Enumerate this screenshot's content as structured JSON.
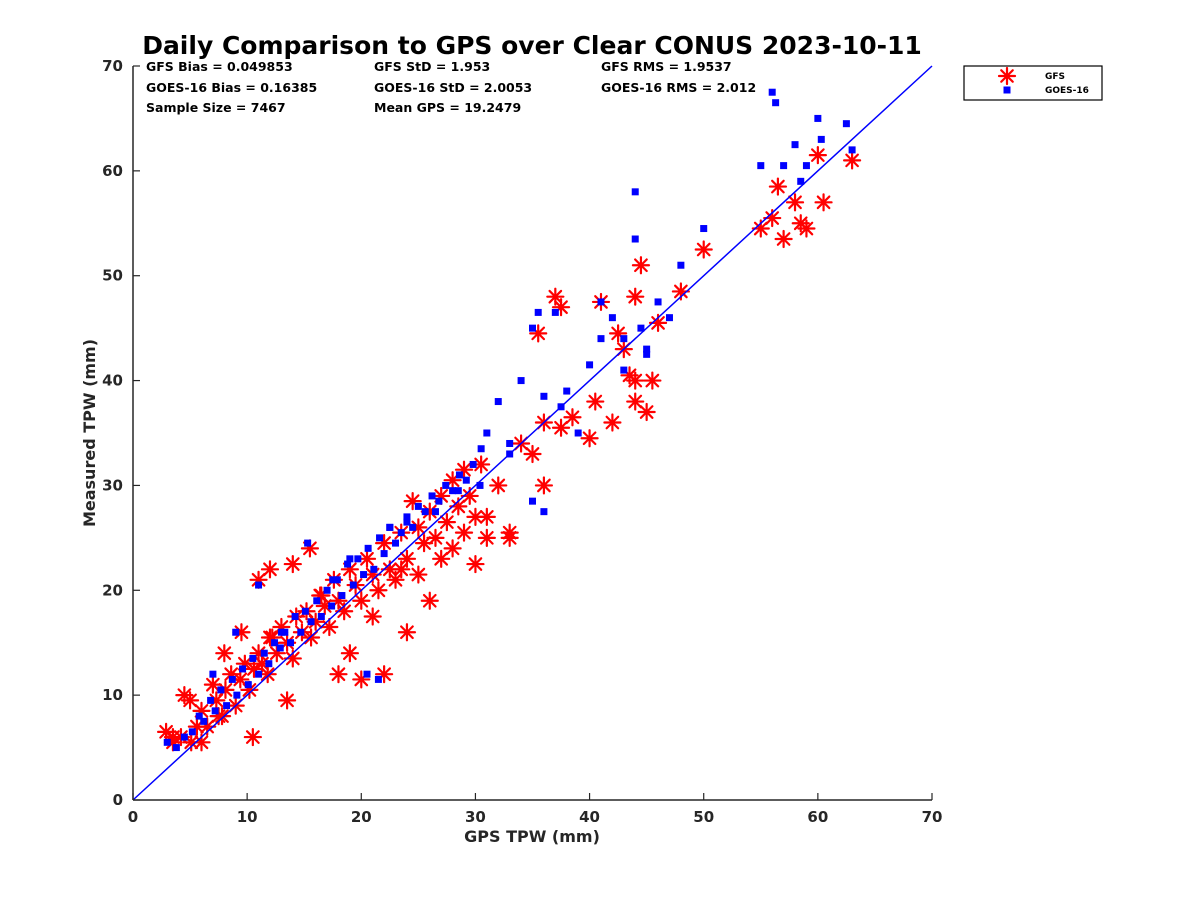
{
  "chart_data": {
    "type": "scatter",
    "title": "Daily Comparison to GPS over Clear CONUS 2023-10-11",
    "xlabel": "GPS TPW (mm)",
    "ylabel": "Measured TPW (mm)",
    "xlim": [
      0,
      70
    ],
    "ylim": [
      0,
      70
    ],
    "xticks": [
      0,
      10,
      20,
      30,
      40,
      50,
      60,
      70
    ],
    "yticks": [
      0,
      10,
      20,
      30,
      40,
      50,
      60,
      70
    ],
    "grid": false,
    "legend_position": "top-right outside",
    "reference_line": {
      "name": "1:1 line",
      "from": [
        0,
        0
      ],
      "to": [
        70,
        70
      ],
      "color": "#0000ff"
    },
    "stats": [
      [
        {
          "label": "GFS Bias",
          "value": "0.049853"
        },
        {
          "label": "GFS StD",
          "value": "1.953"
        },
        {
          "label": "GFS RMS",
          "value": "1.9537"
        }
      ],
      [
        {
          "label": "GOES-16 Bias",
          "value": "0.16385"
        },
        {
          "label": "GOES-16 StD",
          "value": "2.0053"
        },
        {
          "label": "GOES-16 RMS",
          "value": "2.012"
        }
      ],
      [
        {
          "label": "Sample Size",
          "value": "7467"
        },
        {
          "label": "Mean GPS",
          "value": "19.2479"
        }
      ]
    ],
    "series": [
      {
        "name": "GFS",
        "marker": "asterisk",
        "color": "#ff0000",
        "x": [
          2.9,
          3.5,
          4.2,
          5.0,
          5.1,
          5.6,
          6.0,
          6.5,
          7.0,
          7.3,
          7.8,
          8.1,
          8.6,
          9.0,
          9.4,
          9.8,
          10.2,
          10.6,
          11.0,
          11.3,
          11.8,
          12.2,
          12.6,
          13.0,
          13.5,
          14.0,
          14.3,
          14.8,
          15.2,
          15.6,
          16.0,
          16.4,
          16.8,
          17.2,
          17.6,
          18.0,
          18.5,
          19.0,
          19.5,
          20.0,
          20.5,
          21.0,
          21.5,
          22.0,
          22.5,
          23.0,
          23.5,
          24.0,
          24.5,
          25.0,
          25.5,
          26.0,
          26.5,
          27.0,
          27.5,
          28.0,
          28.5,
          29.0,
          29.5,
          30.0,
          30.5,
          31.0,
          32.0,
          33.0,
          34.0,
          35.0,
          35.5,
          36.0,
          37.0,
          37.5,
          38.5,
          40.0,
          40.5,
          41.0,
          42.0,
          42.5,
          43.0,
          43.5,
          44.0,
          44.5,
          45.0,
          45.5,
          46.0,
          48.0,
          50.0,
          55.0,
          56.0,
          56.5,
          57.0,
          58.0,
          58.5,
          59.0,
          60.0,
          60.5,
          63.0,
          11.0,
          12.0,
          14.0,
          15.5,
          8.0,
          7.5,
          9.5,
          10.5,
          13.5,
          18.0,
          20.0,
          22.0,
          24.0,
          26.0,
          28.0,
          30.0,
          33.0,
          36.0,
          44.0,
          44.0,
          37.5,
          12.0,
          16.5,
          19.0,
          21.0,
          23.5,
          25.0,
          27.0,
          29.0,
          31.0,
          6.0,
          4.5,
          3.5
        ],
        "y": [
          6.5,
          5.5,
          6.0,
          9.5,
          5.5,
          7.0,
          8.5,
          7.0,
          11.0,
          9.5,
          8.0,
          10.5,
          12.0,
          9.0,
          11.5,
          13.0,
          10.5,
          12.5,
          14.0,
          13.0,
          12.0,
          15.5,
          14.0,
          16.5,
          15.0,
          13.5,
          17.5,
          16.0,
          18.0,
          15.5,
          17.0,
          19.5,
          18.5,
          16.5,
          21.0,
          19.0,
          18.0,
          22.0,
          20.5,
          19.0,
          23.0,
          21.5,
          20.0,
          24.5,
          22.0,
          21.0,
          25.5,
          23.0,
          28.5,
          26.0,
          24.5,
          27.5,
          25.0,
          29.0,
          26.5,
          30.5,
          28.0,
          31.5,
          29.0,
          27.0,
          32.0,
          25.0,
          30.0,
          25.5,
          34.0,
          33.0,
          44.5,
          36.0,
          48.0,
          47.0,
          36.5,
          34.5,
          38.0,
          47.5,
          36.0,
          44.5,
          43.0,
          40.5,
          48.0,
          51.0,
          37.0,
          40.0,
          45.5,
          48.5,
          52.5,
          54.5,
          55.5,
          58.5,
          53.5,
          57.0,
          55.0,
          54.5,
          61.5,
          57.0,
          61.0,
          21.0,
          22.0,
          22.5,
          24.0,
          14.0,
          8.0,
          16.0,
          6.0,
          9.5,
          12.0,
          11.5,
          12.0,
          16.0,
          19.0,
          24.0,
          22.5,
          25.0,
          30.0,
          38.0,
          40.0,
          35.5,
          15.5,
          19.5,
          14.0,
          17.5,
          22.0,
          21.5,
          23.0,
          25.5,
          27.0,
          5.5,
          10.0,
          6.0
        ]
      },
      {
        "name": "GOES-16",
        "marker": "square",
        "color": "#0000ff",
        "x": [
          3.0,
          3.8,
          4.5,
          5.2,
          5.8,
          6.2,
          6.8,
          7.2,
          7.7,
          8.2,
          8.7,
          9.1,
          9.6,
          10.1,
          10.5,
          11.0,
          11.5,
          11.9,
          12.4,
          12.9,
          13.3,
          13.8,
          14.2,
          14.7,
          15.1,
          15.6,
          16.1,
          16.5,
          17.0,
          17.4,
          17.9,
          18.3,
          18.8,
          19.3,
          19.7,
          20.2,
          20.6,
          21.1,
          21.6,
          22.0,
          22.5,
          23.0,
          23.5,
          24.0,
          24.5,
          25.0,
          25.6,
          26.2,
          26.8,
          27.4,
          28.0,
          28.6,
          29.2,
          29.8,
          30.4,
          31.0,
          32.0,
          33.0,
          34.0,
          35.0,
          35.5,
          36.0,
          37.0,
          38.0,
          39.0,
          40.0,
          41.0,
          42.0,
          43.0,
          44.0,
          44.0,
          44.5,
          45.0,
          46.0,
          47.0,
          48.0,
          50.0,
          55.0,
          56.0,
          56.3,
          57.0,
          58.0,
          58.5,
          59.0,
          60.0,
          60.3,
          62.5,
          63.0,
          15.3,
          20.5,
          21.5,
          11.0,
          35.0,
          36.0,
          43.0,
          45.0,
          41.0,
          30.5,
          9.0,
          7.0,
          13.0,
          17.5,
          19.0,
          22.5,
          24.0,
          26.5,
          28.5,
          33.0,
          37.5
        ],
        "y": [
          5.5,
          5.0,
          6.0,
          6.5,
          8.0,
          7.5,
          9.5,
          8.5,
          10.5,
          9.0,
          11.5,
          10.0,
          12.5,
          11.0,
          13.5,
          12.0,
          14.0,
          13.0,
          15.0,
          14.5,
          16.0,
          15.0,
          17.5,
          16.0,
          18.0,
          17.0,
          19.0,
          17.5,
          20.0,
          18.5,
          21.0,
          19.5,
          22.5,
          20.5,
          23.0,
          21.5,
          24.0,
          22.0,
          25.0,
          23.5,
          26.0,
          24.5,
          25.5,
          27.0,
          26.0,
          28.0,
          27.5,
          29.0,
          28.5,
          30.0,
          29.5,
          31.0,
          30.5,
          32.0,
          30.0,
          35.0,
          38.0,
          33.0,
          40.0,
          45.0,
          46.5,
          38.5,
          46.5,
          39.0,
          35.0,
          41.5,
          47.5,
          46.0,
          41.0,
          58.0,
          53.5,
          45.0,
          43.0,
          47.5,
          46.0,
          51.0,
          54.5,
          60.5,
          67.5,
          66.5,
          60.5,
          62.5,
          59.0,
          60.5,
          65.0,
          63.0,
          64.5,
          62.0,
          24.5,
          12.0,
          11.5,
          20.5,
          28.5,
          27.5,
          44.0,
          42.5,
          44.0,
          33.5,
          16.0,
          12.0,
          16.0,
          21.0,
          23.0,
          26.0,
          26.5,
          27.5,
          29.5,
          34.0,
          37.5
        ]
      }
    ]
  }
}
